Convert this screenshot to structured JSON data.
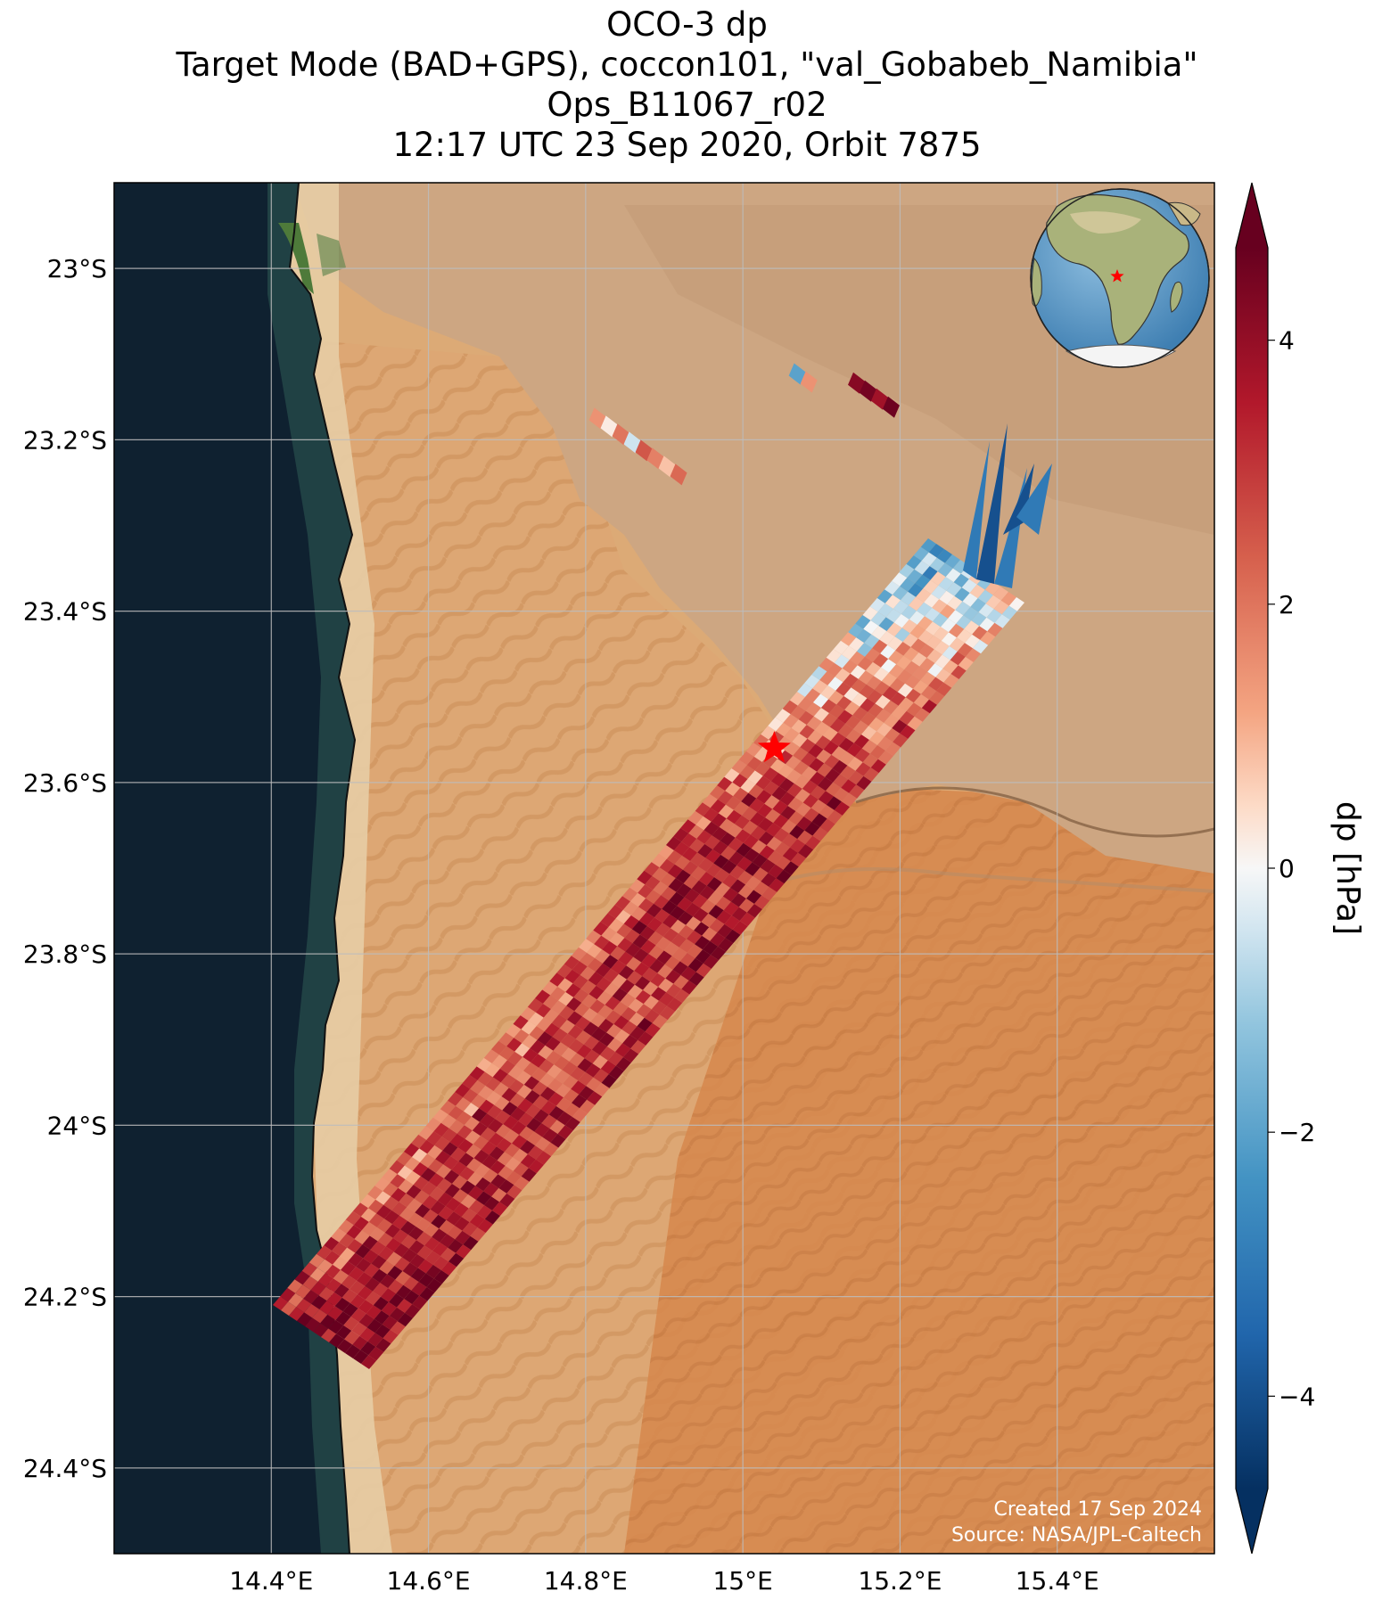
{
  "title": {
    "line1": "OCO-3 dp",
    "line2": "Target Mode (BAD+GPS), coccon101, \"val_Gobabeb_Namibia\"",
    "line3": "Ops_B11067_r02",
    "line4": "12:17 UTC 23 Sep 2020, Orbit 7875"
  },
  "map": {
    "lon_range": [
      14.2,
      15.6
    ],
    "lat_range": [
      -24.5,
      -22.9
    ],
    "lon_ticks": [
      {
        "value": 14.4,
        "label": "14.4°E"
      },
      {
        "value": 14.6,
        "label": "14.6°E"
      },
      {
        "value": 14.8,
        "label": "14.8°E"
      },
      {
        "value": 15.0,
        "label": "15°E"
      },
      {
        "value": 15.2,
        "label": "15.2°E"
      },
      {
        "value": 15.4,
        "label": "15.4°E"
      }
    ],
    "lat_ticks": [
      {
        "value": -23.0,
        "label": "23°S"
      },
      {
        "value": -23.2,
        "label": "23.2°S"
      },
      {
        "value": -23.4,
        "label": "23.4°S"
      },
      {
        "value": -23.6,
        "label": "23.6°S"
      },
      {
        "value": -23.8,
        "label": "23.8°S"
      },
      {
        "value": -24.0,
        "label": "24°S"
      },
      {
        "value": -24.2,
        "label": "24.2°S"
      },
      {
        "value": -24.4,
        "label": "24.4°S"
      }
    ],
    "gridlines": true,
    "background": "satellite imagery (ocean, coastline, sand dunes, desert plateau)",
    "target_marker": {
      "lon": 15.04,
      "lat": -23.56,
      "symbol": "star",
      "color": "#ff0000"
    },
    "inset_globe": {
      "placement": "top-right",
      "marker_color": "#ff0000"
    },
    "credit": {
      "created": "Created 17 Sep 2024",
      "source": "Source: NASA/JPL-Caltech"
    }
  },
  "colors": {
    "ocean": "#0f2130",
    "sand": "#dcaa76",
    "dune": "#d98b4f",
    "plateau": "#c9a27c",
    "star": "#ff0000"
  },
  "chart_data": {
    "type": "heatmap",
    "variable": "dp",
    "units": "hPa",
    "colorbar": {
      "label": "dp [hPa]",
      "range": [
        -4.7,
        4.7
      ],
      "extend": "both",
      "cmap": "RdBu_r",
      "ticks": [
        {
          "value": 4,
          "label": "4"
        },
        {
          "value": 2,
          "label": "2"
        },
        {
          "value": 0,
          "label": "0"
        },
        {
          "value": -2,
          "label": "−2"
        },
        {
          "value": -4,
          "label": "−4"
        }
      ]
    },
    "swath": {
      "description": "target-mode footprints along a SW-NE strip",
      "value_profile": [
        {
          "lat": -24.25,
          "mean_dp": 4.0
        },
        {
          "lat": -24.05,
          "mean_dp": 3.0
        },
        {
          "lat": -23.85,
          "mean_dp": 3.0
        },
        {
          "lat": -23.65,
          "mean_dp": 3.5
        },
        {
          "lat": -23.5,
          "mean_dp": 1.8
        },
        {
          "lat": -23.4,
          "mean_dp": 0.0
        },
        {
          "lat": -23.28,
          "mean_dp": -2.0
        }
      ]
    },
    "isolated_segments": [
      {
        "lon": 14.87,
        "lat": -23.2,
        "values": [
          1.5,
          0.2,
          2.0,
          -0.5,
          2.5,
          1.8,
          0.8,
          2.2
        ]
      },
      {
        "lon": 15.08,
        "lat": -23.12,
        "values": [
          -2.0,
          1.5
        ]
      },
      {
        "lon": 15.17,
        "lat": -23.14,
        "values": [
          4.2,
          4.5,
          3.8,
          4.6
        ]
      }
    ]
  }
}
